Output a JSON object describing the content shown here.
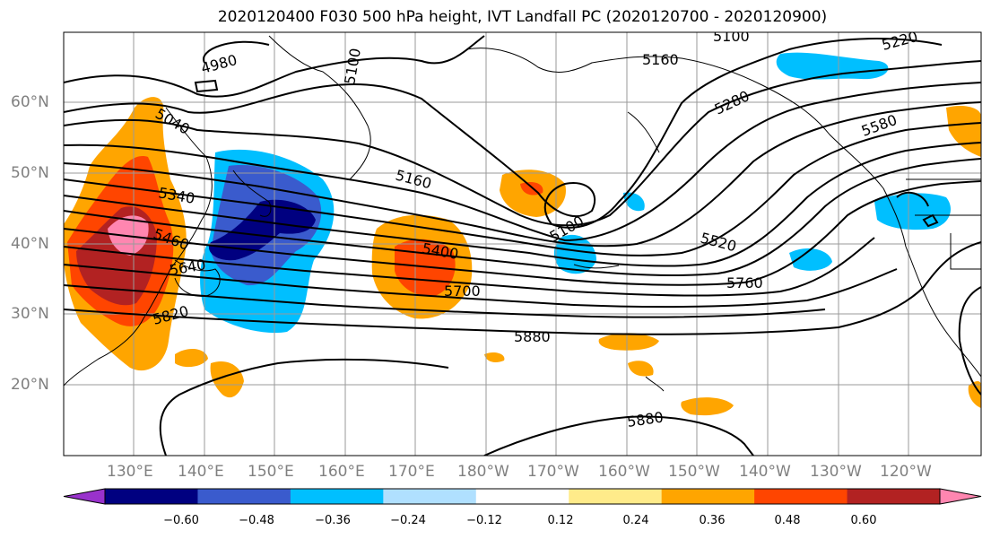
{
  "title": "2020120400 F030 500 hPa height, IVT Landfall PC (2020120700 - 2020120900)",
  "lat_labels": [
    "60°N",
    "50°N",
    "40°N",
    "30°N",
    "20°N"
  ],
  "lon_labels": [
    "130°E",
    "140°E",
    "150°E",
    "160°E",
    "170°E",
    "180°W",
    "170°W",
    "160°W",
    "150°W",
    "140°W",
    "130°W",
    "120°W"
  ],
  "contour_labels": [
    "4980",
    "5040",
    "5100",
    "5100",
    "5100",
    "5160",
    "5160",
    "5220",
    "5280",
    "5340",
    "5400",
    "5460",
    "5520",
    "5580",
    "5640",
    "5700",
    "5760",
    "5820",
    "5880",
    "5880"
  ],
  "colorbar": {
    "ticks": [
      "−0.60",
      "−0.48",
      "−0.36",
      "−0.24",
      "−0.12",
      "0.12",
      "0.24",
      "0.36",
      "0.48",
      "0.60"
    ],
    "colors": [
      "#9932CC",
      "#000080",
      "#3A5BCD",
      "#00BFFF",
      "#B0E0FF",
      "#FFFFFF",
      "#FFEB8A",
      "#FFA500",
      "#FF4500",
      "#B22222",
      "#FF86B0"
    ]
  }
}
